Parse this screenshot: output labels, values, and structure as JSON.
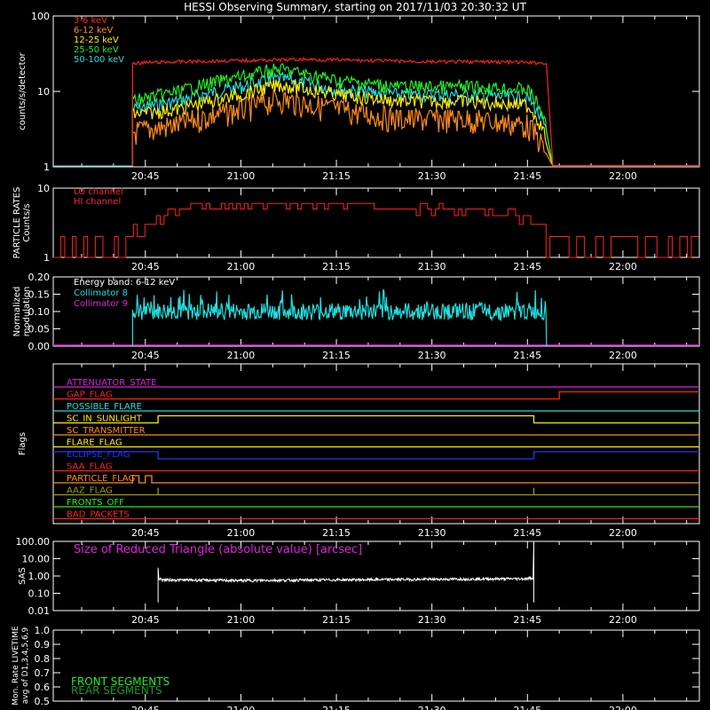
{
  "title": "HESSI Observing Summary, starting on 2017/11/03 20:30:32 UT",
  "colors": {
    "bg": "#000000",
    "axis": "#ffffff",
    "c3_6": "#ff2020",
    "c6_12": "#ff8c1a",
    "c12_25": "#ffee00",
    "c25_50": "#22ee22",
    "c50_100": "#22dddd",
    "lo": "#ff2020",
    "hi": "#ff2050",
    "coll8": "#22dddd",
    "coll9": "#dd22dd",
    "sas": "#ffffff",
    "front": "#22ee22",
    "rear": "#1a9a1a"
  },
  "time_ticks": [
    "20:45",
    "21:00",
    "21:15",
    "21:30",
    "21:45",
    "22:00"
  ],
  "chart_data": [
    {
      "type": "line",
      "id": "counts",
      "ylabel": "counts/s/detector",
      "yscale": "log",
      "ylim": [
        1,
        100
      ],
      "ytick_labels": [
        "1",
        "10",
        "100"
      ],
      "x_range": [
        "20:30:32",
        "22:12"
      ],
      "series": [
        {
          "name": "3-6 keV",
          "color_key": "c3_6",
          "times": [
            "20:43",
            "20:50",
            "21:00",
            "21:10",
            "21:20",
            "21:30",
            "21:40",
            "21:48",
            "21:49"
          ],
          "values": [
            25,
            26,
            27,
            28,
            27,
            26,
            26,
            25,
            1
          ]
        },
        {
          "name": "6-12 keV",
          "color_key": "c6_12",
          "times": [
            "20:43",
            "20:50",
            "21:00",
            "21:06",
            "21:15",
            "21:25",
            "21:35",
            "21:45",
            "21:49"
          ],
          "values": [
            4,
            5,
            8,
            11,
            8,
            6,
            6,
            5,
            1
          ]
        },
        {
          "name": "12-25 keV",
          "color_key": "c12_25",
          "times": [
            "20:43",
            "20:50",
            "21:00",
            "21:06",
            "21:15",
            "21:25",
            "21:35",
            "21:45",
            "21:49"
          ],
          "values": [
            6,
            7,
            11,
            15,
            11,
            9,
            9,
            8,
            1
          ]
        },
        {
          "name": "25-50 keV",
          "color_key": "c25_50",
          "times": [
            "20:43",
            "20:50",
            "21:00",
            "21:06",
            "21:15",
            "21:25",
            "21:35",
            "21:45",
            "21:49"
          ],
          "values": [
            9,
            12,
            19,
            24,
            17,
            14,
            14,
            13,
            1
          ]
        },
        {
          "name": "50-100 keV",
          "color_key": "c50_100",
          "times": [
            "20:43",
            "20:50",
            "21:00",
            "21:06",
            "21:15",
            "21:25",
            "21:35",
            "21:45",
            "21:49"
          ],
          "values": [
            7,
            9,
            14,
            18,
            13,
            11,
            11,
            10,
            1
          ]
        }
      ]
    },
    {
      "type": "line",
      "id": "particle",
      "ylabel": "PARTICLE RATES Counts/s",
      "yscale": "log",
      "ylim": [
        1,
        10
      ],
      "ytick_labels": [
        "1",
        "10"
      ],
      "series": [
        {
          "name": "LO channel",
          "color_key": "lo",
          "times": [
            "20:30:32",
            "20:36",
            "20:37",
            "20:40",
            "20:43",
            "20:46",
            "20:48",
            "20:50",
            "21:00",
            "21:10",
            "21:20",
            "21:30",
            "21:40",
            "21:45",
            "21:47",
            "21:48",
            "21:55",
            "22:05",
            "22:12"
          ],
          "values": [
            1,
            1,
            2,
            1.5,
            2,
            3,
            4,
            5,
            5.5,
            6,
            5.5,
            5,
            4.5,
            4,
            3,
            1.5,
            1.5,
            1.5,
            1.5
          ]
        },
        {
          "name": "HI channel",
          "color_key": "hi",
          "times": [],
          "values": []
        }
      ]
    },
    {
      "type": "line",
      "id": "modulation",
      "ylabel": "Normalized modulation",
      "ylim": [
        0.0,
        0.2
      ],
      "ytick_labels": [
        "0.00",
        "0.05",
        "0.10",
        "0.15",
        "0.20"
      ],
      "annotation": "Energy band: 6-12 keV",
      "series": [
        {
          "name": "Collimator 8",
          "color_key": "coll8",
          "times": [
            "20:43",
            "21:48"
          ],
          "values": [
            0.1,
            0.1
          ]
        },
        {
          "name": "Collimator 9",
          "color_key": "coll9",
          "times": [
            "20:30:32",
            "22:12"
          ],
          "values": [
            0.0,
            0.0
          ]
        }
      ]
    },
    {
      "type": "line",
      "id": "flags",
      "ylabel": "Flags",
      "flags": [
        {
          "name": "ATTENUATOR_STATE",
          "color": "#dd22dd",
          "times": [
            "20:30:32",
            "22:12"
          ],
          "values": [
            0,
            0
          ]
        },
        {
          "name": "GAP_FLAG",
          "color": "#ff2020",
          "times": [
            "20:30:32",
            "21:50",
            "21:50",
            "22:12"
          ],
          "values": [
            0,
            0,
            1,
            1
          ]
        },
        {
          "name": "POSSIBLE_FLARE",
          "color": "#22dddd",
          "times": [
            "20:30:32",
            "22:12"
          ],
          "values": [
            0,
            0
          ]
        },
        {
          "name": "SC_IN_SUNLIGHT",
          "color": "#ffee00",
          "times": [
            "20:30:32",
            "20:47",
            "20:47",
            "21:46",
            "21:46",
            "22:12"
          ],
          "values": [
            0,
            0,
            1,
            1,
            0,
            0
          ]
        },
        {
          "name": "SC_TRANSMITTER",
          "color": "#ff8c1a",
          "times": [
            "20:30:32",
            "22:12"
          ],
          "values": [
            0,
            0
          ]
        },
        {
          "name": "FLARE_FLAG",
          "color": "#ffee00",
          "times": [
            "20:30:32",
            "22:12"
          ],
          "values": [
            0,
            0
          ]
        },
        {
          "name": "ECLIPSE_FLAG",
          "color": "#2233ff",
          "times": [
            "20:30:32",
            "20:47",
            "20:47",
            "21:46",
            "21:46",
            "22:12"
          ],
          "values": [
            1,
            1,
            0,
            0,
            1,
            1
          ]
        },
        {
          "name": "SAA_FLAG",
          "color": "#ff2020",
          "times": [
            "20:30:32",
            "22:12"
          ],
          "values": [
            0,
            0
          ]
        },
        {
          "name": "PARTICLE_FLAG",
          "color": "#ff8c1a",
          "times": [
            "20:30:32",
            "20:43",
            "20:43",
            "20:44",
            "20:44",
            "20:45",
            "20:45",
            "20:46",
            "20:46",
            "20:47",
            "20:47",
            "22:12"
          ],
          "values": [
            0,
            0,
            1,
            1,
            0,
            0,
            1,
            1,
            0,
            0,
            0,
            0
          ]
        },
        {
          "name": "AAZ_FLAG",
          "color": "#9a9a1a",
          "times": [
            "20:30:32",
            "20:47",
            "20:47",
            "20:47",
            "20:47",
            "21:46",
            "21:46",
            "21:46",
            "21:46",
            "22:12"
          ],
          "values": [
            0,
            0,
            1,
            1,
            0,
            0,
            1,
            1,
            0,
            0
          ]
        },
        {
          "name": "FRONTS_OFF",
          "color": "#22ee22",
          "times": [
            "20:30:32",
            "22:12"
          ],
          "values": [
            0,
            0
          ]
        },
        {
          "name": "BAD_PACKETS",
          "color": "#ff2020",
          "times": [
            "20:30:32",
            "22:12"
          ],
          "values": [
            0,
            0
          ]
        }
      ]
    },
    {
      "type": "line",
      "id": "sas",
      "ylabel": "SAS",
      "yscale": "log",
      "ylim": [
        0.01,
        100
      ],
      "ytick_labels": [
        "0.01",
        "0.10",
        "1.00",
        "10.00",
        "100.00"
      ],
      "annotation": "Size of Reduced Triangle (absolute value) [arcsec]",
      "series": [
        {
          "name": "Size of Reduced Triangle (absolute value) [arcsec]",
          "color_key": "sas",
          "times": [
            "20:47",
            "20:48",
            "21:00",
            "21:15",
            "21:30",
            "21:45",
            "21:46"
          ],
          "values": [
            0.7,
            0.6,
            0.55,
            0.6,
            0.65,
            0.7,
            0.8
          ]
        }
      ]
    },
    {
      "type": "line",
      "id": "livetime",
      "ylabel": "Mon. Rate LIVETIME avg of D1,3,4,5,6,9",
      "ylim": [
        0.5,
        1.0
      ],
      "ytick_labels": [
        "0.5",
        "0.6",
        "0.7",
        "0.8",
        "0.9",
        "1.0"
      ],
      "series": [
        {
          "name": "FRONT SEGMENTS",
          "color_key": "front",
          "times": [],
          "values": []
        },
        {
          "name": "REAR SEGMENTS",
          "color_key": "rear",
          "times": [],
          "values": []
        }
      ]
    }
  ]
}
